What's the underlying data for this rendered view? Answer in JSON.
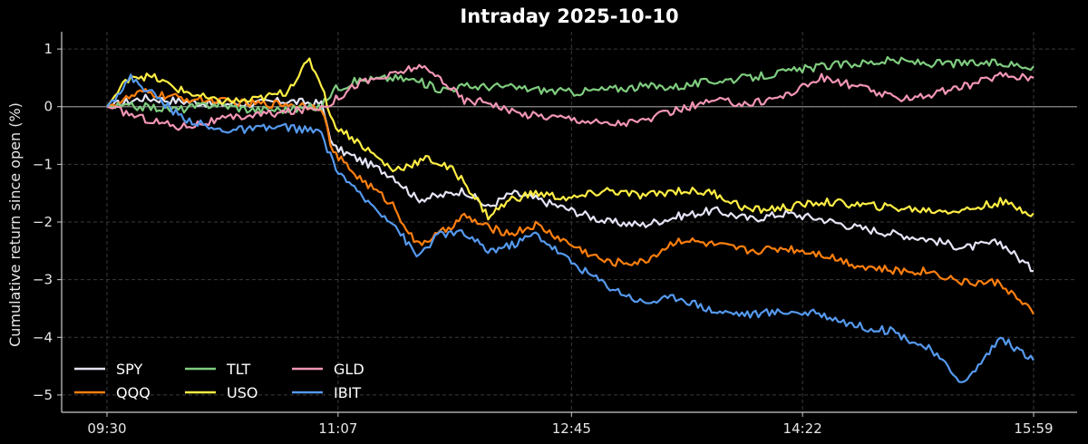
{
  "chart_data": {
    "type": "line",
    "title": "Intraday 2025-10-10",
    "xlabel": "",
    "ylabel": "Cumulative return since open (%)",
    "x_range": [
      "09:30",
      "15:59"
    ],
    "x_ticks": [
      "09:30",
      "11:07",
      "12:45",
      "14:22",
      "15:59"
    ],
    "ylim": [
      -5.3,
      1.3
    ],
    "y_ticks": [
      1,
      0,
      -1,
      -2,
      -3,
      -4,
      -5
    ],
    "grid": true,
    "zero_line": true,
    "legend_position": "lower-left",
    "series": [
      {
        "name": "SPY",
        "color": "#e4e4f5",
        "points": [
          [
            "09:30",
            0
          ],
          [
            "09:45",
            0.15
          ],
          [
            "10:00",
            0.1
          ],
          [
            "10:15",
            0.05
          ],
          [
            "10:30",
            0.05
          ],
          [
            "10:45",
            0.1
          ],
          [
            "11:00",
            0.05
          ],
          [
            "11:05",
            -0.7
          ],
          [
            "11:15",
            -0.9
          ],
          [
            "11:30",
            -1.2
          ],
          [
            "11:40",
            -1.6
          ],
          [
            "11:50",
            -1.55
          ],
          [
            "12:00",
            -1.45
          ],
          [
            "12:10",
            -1.75
          ],
          [
            "12:20",
            -1.5
          ],
          [
            "12:30",
            -1.6
          ],
          [
            "12:45",
            -1.8
          ],
          [
            "13:00",
            -2.0
          ],
          [
            "13:15",
            -2.05
          ],
          [
            "13:30",
            -1.9
          ],
          [
            "13:45",
            -1.8
          ],
          [
            "14:00",
            -1.95
          ],
          [
            "14:15",
            -1.85
          ],
          [
            "14:30",
            -1.95
          ],
          [
            "14:45",
            -2.1
          ],
          [
            "15:00",
            -2.2
          ],
          [
            "15:15",
            -2.3
          ],
          [
            "15:30",
            -2.45
          ],
          [
            "15:45",
            -2.35
          ],
          [
            "15:59",
            -2.85
          ]
        ]
      },
      {
        "name": "QQQ",
        "color": "#ff7f0e",
        "points": [
          [
            "09:30",
            0
          ],
          [
            "09:45",
            0.25
          ],
          [
            "10:00",
            0.15
          ],
          [
            "10:15",
            0.1
          ],
          [
            "10:30",
            0.05
          ],
          [
            "10:45",
            0.05
          ],
          [
            "11:00",
            0.0
          ],
          [
            "11:05",
            -0.8
          ],
          [
            "11:15",
            -1.2
          ],
          [
            "11:30",
            -1.7
          ],
          [
            "11:40",
            -2.4
          ],
          [
            "11:50",
            -2.2
          ],
          [
            "12:00",
            -1.9
          ],
          [
            "12:10",
            -2.1
          ],
          [
            "12:20",
            -2.2
          ],
          [
            "12:30",
            -2.05
          ],
          [
            "12:45",
            -2.4
          ],
          [
            "13:00",
            -2.7
          ],
          [
            "13:15",
            -2.7
          ],
          [
            "13:30",
            -2.3
          ],
          [
            "13:45",
            -2.4
          ],
          [
            "14:00",
            -2.5
          ],
          [
            "14:15",
            -2.45
          ],
          [
            "14:30",
            -2.55
          ],
          [
            "14:45",
            -2.75
          ],
          [
            "15:00",
            -2.85
          ],
          [
            "15:15",
            -2.85
          ],
          [
            "15:30",
            -3.05
          ],
          [
            "15:45",
            -3.05
          ],
          [
            "15:59",
            -3.6
          ]
        ]
      },
      {
        "name": "TLT",
        "color": "#7fcc7f",
        "points": [
          [
            "09:30",
            0
          ],
          [
            "09:45",
            0.0
          ],
          [
            "10:00",
            -0.05
          ],
          [
            "10:15",
            0.05
          ],
          [
            "10:30",
            -0.05
          ],
          [
            "10:45",
            -0.05
          ],
          [
            "11:00",
            0.0
          ],
          [
            "11:05",
            0.3
          ],
          [
            "11:15",
            0.45
          ],
          [
            "11:30",
            0.5
          ],
          [
            "11:40",
            0.45
          ],
          [
            "11:50",
            0.3
          ],
          [
            "12:00",
            0.35
          ],
          [
            "12:15",
            0.35
          ],
          [
            "12:30",
            0.3
          ],
          [
            "12:45",
            0.25
          ],
          [
            "13:00",
            0.3
          ],
          [
            "13:15",
            0.35
          ],
          [
            "13:30",
            0.35
          ],
          [
            "13:45",
            0.45
          ],
          [
            "14:00",
            0.5
          ],
          [
            "14:15",
            0.6
          ],
          [
            "14:30",
            0.7
          ],
          [
            "14:45",
            0.75
          ],
          [
            "15:00",
            0.8
          ],
          [
            "15:15",
            0.75
          ],
          [
            "15:30",
            0.75
          ],
          [
            "15:45",
            0.75
          ],
          [
            "15:59",
            0.7
          ]
        ]
      },
      {
        "name": "USO",
        "color": "#ffee44",
        "points": [
          [
            "09:30",
            0
          ],
          [
            "09:40",
            0.55
          ],
          [
            "09:50",
            0.5
          ],
          [
            "10:00",
            0.3
          ],
          [
            "10:15",
            0.1
          ],
          [
            "10:30",
            0.1
          ],
          [
            "10:45",
            0.25
          ],
          [
            "10:55",
            0.8
          ],
          [
            "11:00",
            0.4
          ],
          [
            "11:05",
            -0.3
          ],
          [
            "11:15",
            -0.6
          ],
          [
            "11:30",
            -1.1
          ],
          [
            "11:45",
            -0.9
          ],
          [
            "11:55",
            -1.1
          ],
          [
            "12:00",
            -1.3
          ],
          [
            "12:10",
            -1.9
          ],
          [
            "12:20",
            -1.6
          ],
          [
            "12:30",
            -1.5
          ],
          [
            "12:45",
            -1.6
          ],
          [
            "13:00",
            -1.45
          ],
          [
            "13:15",
            -1.55
          ],
          [
            "13:30",
            -1.45
          ],
          [
            "13:45",
            -1.5
          ],
          [
            "14:00",
            -1.8
          ],
          [
            "14:15",
            -1.75
          ],
          [
            "14:30",
            -1.65
          ],
          [
            "14:45",
            -1.7
          ],
          [
            "15:00",
            -1.75
          ],
          [
            "15:15",
            -1.8
          ],
          [
            "15:30",
            -1.8
          ],
          [
            "15:45",
            -1.65
          ],
          [
            "15:59",
            -1.85
          ]
        ]
      },
      {
        "name": "GLD",
        "color": "#f296b4",
        "points": [
          [
            "09:30",
            0
          ],
          [
            "09:45",
            -0.2
          ],
          [
            "10:00",
            -0.35
          ],
          [
            "10:15",
            -0.25
          ],
          [
            "10:30",
            -0.15
          ],
          [
            "10:45",
            -0.1
          ],
          [
            "11:00",
            0.0
          ],
          [
            "11:05",
            0.1
          ],
          [
            "11:15",
            0.4
          ],
          [
            "11:30",
            0.55
          ],
          [
            "11:40",
            0.7
          ],
          [
            "11:50",
            0.5
          ],
          [
            "12:00",
            0.1
          ],
          [
            "12:10",
            0.1
          ],
          [
            "12:20",
            -0.1
          ],
          [
            "12:30",
            -0.15
          ],
          [
            "12:45",
            -0.2
          ],
          [
            "13:00",
            -0.3
          ],
          [
            "13:15",
            -0.25
          ],
          [
            "13:30",
            -0.05
          ],
          [
            "13:45",
            0.1
          ],
          [
            "14:00",
            0.05
          ],
          [
            "14:15",
            0.2
          ],
          [
            "14:30",
            0.5
          ],
          [
            "14:45",
            0.35
          ],
          [
            "15:00",
            0.15
          ],
          [
            "15:15",
            0.2
          ],
          [
            "15:30",
            0.35
          ],
          [
            "15:45",
            0.55
          ],
          [
            "15:59",
            0.5
          ]
        ]
      },
      {
        "name": "IBIT",
        "color": "#5599ee",
        "points": [
          [
            "09:30",
            0
          ],
          [
            "09:40",
            0.5
          ],
          [
            "09:50",
            0.2
          ],
          [
            "10:00",
            -0.15
          ],
          [
            "10:15",
            -0.4
          ],
          [
            "10:30",
            -0.4
          ],
          [
            "10:45",
            -0.35
          ],
          [
            "11:00",
            -0.45
          ],
          [
            "11:05",
            -1.0
          ],
          [
            "11:15",
            -1.5
          ],
          [
            "11:30",
            -2.0
          ],
          [
            "11:40",
            -2.6
          ],
          [
            "11:50",
            -2.2
          ],
          [
            "12:00",
            -2.2
          ],
          [
            "12:10",
            -2.5
          ],
          [
            "12:20",
            -2.4
          ],
          [
            "12:30",
            -2.2
          ],
          [
            "12:45",
            -2.7
          ],
          [
            "13:00",
            -3.1
          ],
          [
            "13:15",
            -3.4
          ],
          [
            "13:30",
            -3.3
          ],
          [
            "13:45",
            -3.55
          ],
          [
            "14:00",
            -3.6
          ],
          [
            "14:15",
            -3.55
          ],
          [
            "14:30",
            -3.6
          ],
          [
            "14:45",
            -3.8
          ],
          [
            "15:00",
            -3.9
          ],
          [
            "15:15",
            -4.2
          ],
          [
            "15:30",
            -4.8
          ],
          [
            "15:45",
            -4.0
          ],
          [
            "15:59",
            -4.4
          ]
        ]
      }
    ]
  }
}
